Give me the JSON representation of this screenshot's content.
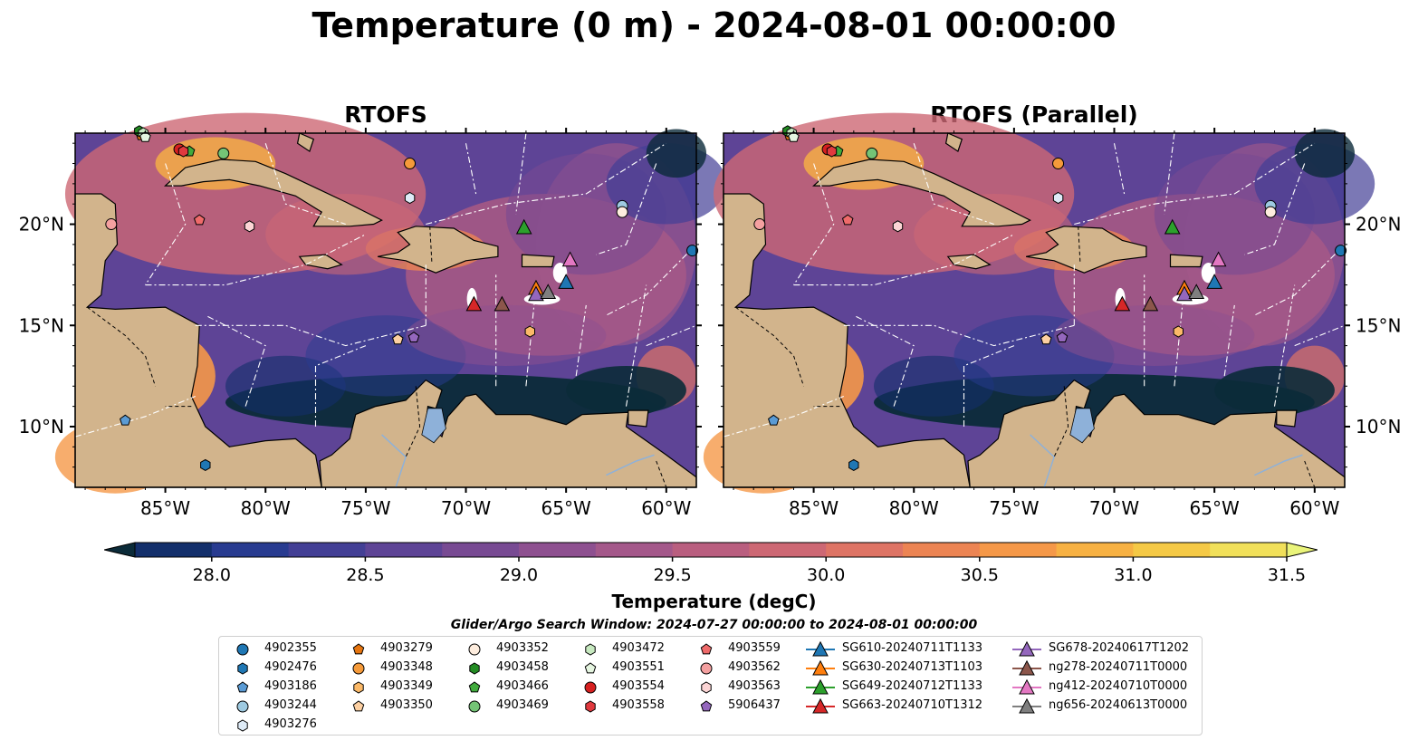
{
  "title": "Temperature (0 m) - 2024-08-01 00:00:00",
  "panels": [
    {
      "title": "RTOFS"
    },
    {
      "title": "RTOFS (Parallel)"
    }
  ],
  "colorbar": {
    "label": "Temperature (degC)",
    "ticks": [
      "28.0",
      "28.5",
      "29.0",
      "29.5",
      "30.0",
      "30.5",
      "31.0",
      "31.5"
    ],
    "colors": [
      "#0b2b39",
      "#132f6b",
      "#283b90",
      "#433f95",
      "#5e4496",
      "#784a93",
      "#8e5090",
      "#a4588a",
      "#b95e7f",
      "#cd6874",
      "#de7465",
      "#ec8453",
      "#f59848",
      "#f7b143",
      "#f5c946",
      "#f1e05a",
      "#eaf47a"
    ]
  },
  "search_window": "Glider/Argo Search Window: 2024-07-27 00:00:00 to 2024-08-01 00:00:00",
  "chart_data": [
    {
      "type": "map",
      "title": "RTOFS",
      "variable": "Temperature (0 m)",
      "units": "degC",
      "color_range": [
        28.0,
        31.5
      ],
      "x_ticks": [
        "85°W",
        "80°W",
        "75°W",
        "70°W",
        "65°W",
        "60°W"
      ],
      "y_ticks": [
        "20°N",
        "15°N",
        "10°N"
      ],
      "lon_range": [
        -89.5,
        -58.5
      ],
      "lat_range": [
        7,
        24.5
      ],
      "argo_floats": [
        {
          "id": "4902355",
          "lon": -58.7,
          "lat": 18.7
        },
        {
          "id": "4902476",
          "lon": -83.0,
          "lat": 8.1
        },
        {
          "id": "4903186",
          "lon": -87.0,
          "lat": 10.3
        },
        {
          "id": "4903244",
          "lon": -62.2,
          "lat": 20.9
        },
        {
          "id": "4903276",
          "lon": -72.8,
          "lat": 21.3
        },
        {
          "id": "4903279",
          "lon": -86.2,
          "lat": 24.4
        },
        {
          "id": "4903348",
          "lon": -72.8,
          "lat": 23.0
        },
        {
          "id": "4903349",
          "lon": -66.8,
          "lat": 14.7
        },
        {
          "id": "4903350",
          "lon": -73.4,
          "lat": 14.3
        },
        {
          "id": "4903352",
          "lon": -62.2,
          "lat": 20.6
        },
        {
          "id": "4903458",
          "lon": -86.3,
          "lat": 24.6
        },
        {
          "id": "4903466",
          "lon": -83.8,
          "lat": 23.6
        },
        {
          "id": "4903469",
          "lon": -82.1,
          "lat": 23.5
        },
        {
          "id": "4903472",
          "lon": -86.1,
          "lat": 24.5
        },
        {
          "id": "4903551",
          "lon": -86.0,
          "lat": 24.3
        },
        {
          "id": "4903554",
          "lon": -84.3,
          "lat": 23.7
        },
        {
          "id": "4903558",
          "lon": -84.1,
          "lat": 23.6
        },
        {
          "id": "4903559",
          "lon": -83.3,
          "lat": 20.2
        },
        {
          "id": "4903562",
          "lon": -87.7,
          "lat": 20.0
        },
        {
          "id": "4903563",
          "lon": -80.8,
          "lat": 19.9
        },
        {
          "id": "5906437",
          "lon": -72.6,
          "lat": 14.4
        }
      ],
      "gliders": [
        {
          "id": "SG610-20240711T1133",
          "lon": -65.0,
          "lat": 17.1
        },
        {
          "id": "SG630-20240713T1103",
          "lon": -66.5,
          "lat": 16.8
        },
        {
          "id": "SG649-20240712T1133",
          "lon": -67.1,
          "lat": 19.8
        },
        {
          "id": "SG663-20240710T1312",
          "lon": -69.6,
          "lat": 16.0
        },
        {
          "id": "SG678-20240617T1202",
          "lon": -66.5,
          "lat": 16.5
        },
        {
          "id": "ng278-20240711T0000",
          "lon": -68.2,
          "lat": 16.0
        },
        {
          "id": "ng412-20240710T0000",
          "lon": -64.8,
          "lat": 18.2
        },
        {
          "id": "ng656-20240613T0000",
          "lon": -65.9,
          "lat": 16.6
        }
      ]
    },
    {
      "type": "map",
      "title": "RTOFS (Parallel)",
      "variable": "Temperature (0 m)",
      "units": "degC",
      "color_range": [
        28.0,
        31.5
      ],
      "x_ticks": [
        "85°W",
        "80°W",
        "75°W",
        "70°W",
        "65°W",
        "60°W"
      ],
      "y_ticks": [
        "20°N",
        "15°N",
        "10°N"
      ],
      "lon_range": [
        -89.5,
        -58.5
      ],
      "lat_range": [
        7,
        24.5
      ]
    }
  ],
  "legend": [
    {
      "label": "4902355",
      "marker": "circle",
      "color": "#1f77b4"
    },
    {
      "label": "4902476",
      "marker": "hexagon",
      "color": "#1f77b4"
    },
    {
      "label": "4903186",
      "marker": "pentagon",
      "color": "#5a9bd5"
    },
    {
      "label": "4903244",
      "marker": "circle",
      "color": "#9ecae1"
    },
    {
      "label": "4903276",
      "marker": "hexagon",
      "color": "#deebf7"
    },
    {
      "label": "4903279",
      "marker": "pentagon",
      "color": "#e6750f"
    },
    {
      "label": "4903348",
      "marker": "circle",
      "color": "#f59a3a"
    },
    {
      "label": "4903349",
      "marker": "hexagon",
      "color": "#fbb968"
    },
    {
      "label": "4903350",
      "marker": "pentagon",
      "color": "#fdd0a2"
    },
    {
      "label": "4903352",
      "marker": "circle",
      "color": "#feedde"
    },
    {
      "label": "4903458",
      "marker": "hexagon",
      "color": "#238b23"
    },
    {
      "label": "4903466",
      "marker": "pentagon",
      "color": "#41ab3d"
    },
    {
      "label": "4903469",
      "marker": "circle",
      "color": "#74c476"
    },
    {
      "label": "4903472",
      "marker": "hexagon",
      "color": "#c7e9c0"
    },
    {
      "label": "4903551",
      "marker": "pentagon",
      "color": "#e5f5e0"
    },
    {
      "label": "4903554",
      "marker": "circle",
      "color": "#d62020"
    },
    {
      "label": "4903558",
      "marker": "hexagon",
      "color": "#e0393e"
    },
    {
      "label": "4903559",
      "marker": "pentagon",
      "color": "#ef6a6a"
    },
    {
      "label": "4903562",
      "marker": "circle",
      "color": "#f4a0a0"
    },
    {
      "label": "4903563",
      "marker": "hexagon",
      "color": "#fcd5d5"
    },
    {
      "label": "5906437",
      "marker": "pentagon",
      "color": "#9467bd"
    },
    {
      "label": "SG610-20240711T1133",
      "marker": "triangle",
      "color": "#1f77b4"
    },
    {
      "label": "SG630-20240713T1103",
      "marker": "triangle",
      "color": "#ff7f0e"
    },
    {
      "label": "SG649-20240712T1133",
      "marker": "triangle",
      "color": "#2ca02c"
    },
    {
      "label": "SG663-20240710T1312",
      "marker": "triangle",
      "color": "#d62728"
    },
    {
      "label": "SG678-20240617T1202",
      "marker": "triangle",
      "color": "#9467bd"
    },
    {
      "label": "ng278-20240711T0000",
      "marker": "triangle",
      "color": "#8c564b"
    },
    {
      "label": "ng412-20240710T0000",
      "marker": "triangle",
      "color": "#e377c2"
    },
    {
      "label": "ng656-20240613T0000",
      "marker": "triangle",
      "color": "#7f7f7f"
    }
  ]
}
